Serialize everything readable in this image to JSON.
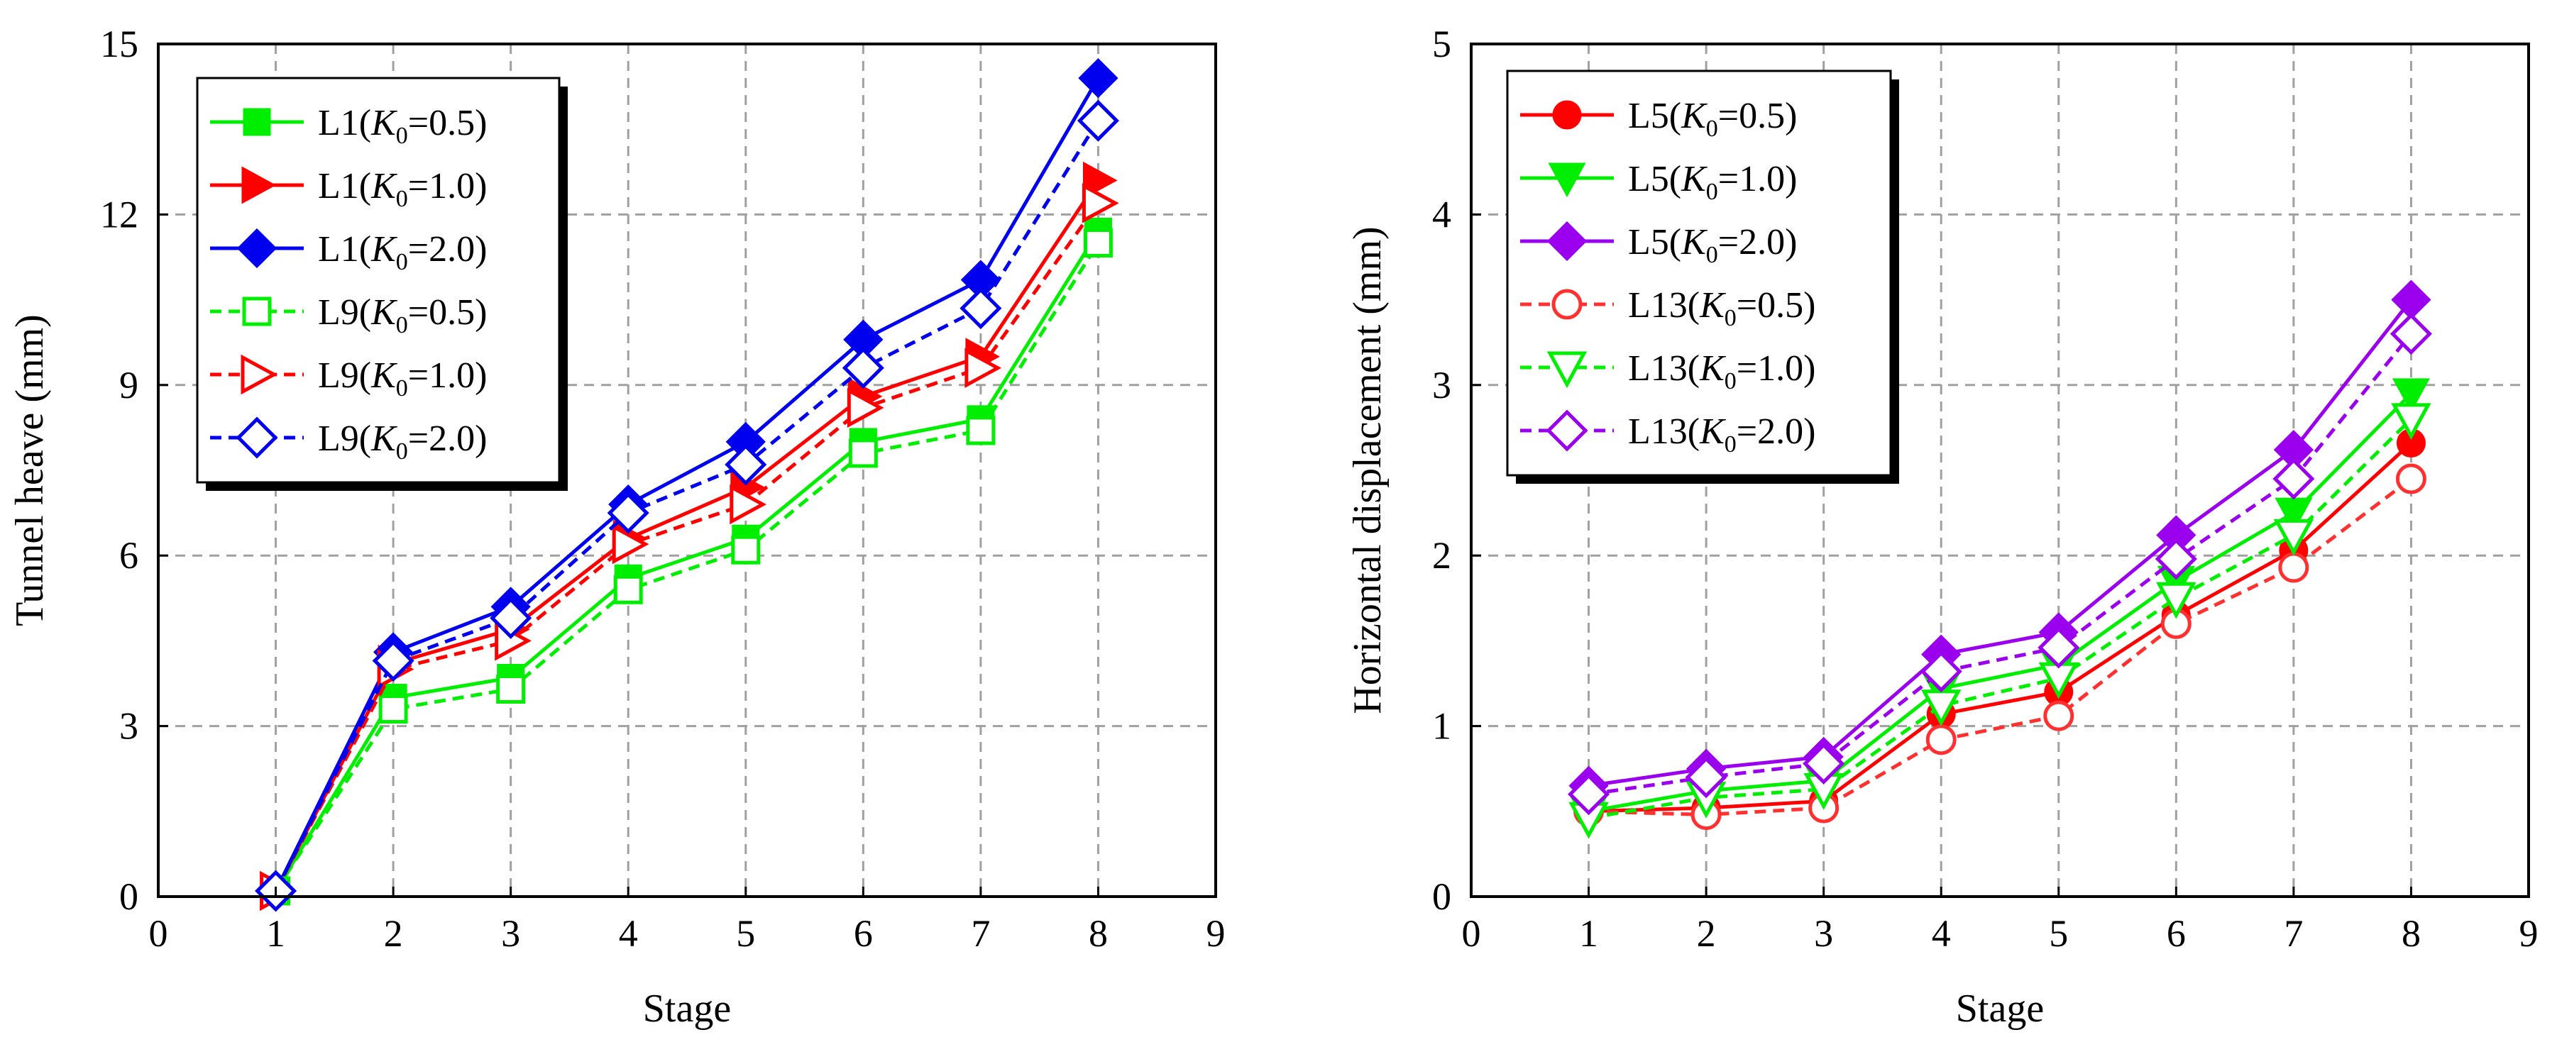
{
  "chart_data": [
    {
      "type": "line",
      "xlabel": "Stage",
      "ylabel": "Tunnel heave (mm)",
      "xlim": [
        0,
        9
      ],
      "ylim": [
        0,
        15
      ],
      "xticks": [
        0,
        1,
        2,
        3,
        4,
        5,
        6,
        7,
        8,
        9
      ],
      "yticks": [
        0,
        3,
        6,
        9,
        12,
        15
      ],
      "xtick_labels": [
        "0",
        "1",
        "2",
        "3",
        "4",
        "5",
        "6",
        "7",
        "8",
        "9"
      ],
      "ytick_labels": [
        "0",
        "3",
        "6",
        "9",
        "12",
        "15"
      ],
      "grid": true,
      "legend_position": "top-left",
      "x": [
        1,
        2,
        3,
        4,
        5,
        6,
        7,
        8
      ],
      "series": [
        {
          "name": "L1(K0=0.5)",
          "label_main": "L1(",
          "label_k": "K",
          "label_sub": "0",
          "label_rest": "=0.5)",
          "color": "#00ee00",
          "dash": "solid",
          "marker": "square",
          "filled": true,
          "values": [
            0.1,
            3.5,
            3.85,
            5.6,
            6.3,
            8.0,
            8.4,
            11.7
          ]
        },
        {
          "name": "L1(K0=1.0)",
          "label_main": "L1(",
          "label_k": "K",
          "label_sub": "0",
          "label_rest": "=1.0)",
          "color": "#ff0000",
          "dash": "solid",
          "marker": "triangle-right",
          "filled": true,
          "values": [
            0.1,
            4.1,
            4.7,
            6.3,
            7.2,
            8.8,
            9.5,
            12.6
          ]
        },
        {
          "name": "L1(K0=2.0)",
          "label_main": "L1(",
          "label_k": "K",
          "label_sub": "0",
          "label_rest": "=2.0)",
          "color": "#0000ee",
          "dash": "solid",
          "marker": "diamond",
          "filled": true,
          "values": [
            0.1,
            4.3,
            5.1,
            6.9,
            8.0,
            9.8,
            10.85,
            14.4
          ]
        },
        {
          "name": "L9(K0=0.5)",
          "label_main": "L9(",
          "label_k": "K",
          "label_sub": "0",
          "label_rest": "=0.5)",
          "color": "#00ee00",
          "dash": "dashed",
          "marker": "square",
          "filled": false,
          "values": [
            0.1,
            3.3,
            3.65,
            5.4,
            6.1,
            7.8,
            8.2,
            11.5
          ]
        },
        {
          "name": "L9(K0=1.0)",
          "label_main": "L9(",
          "label_k": "K",
          "label_sub": "0",
          "label_rest": "=1.0)",
          "color": "#ff0000",
          "dash": "dashed",
          "marker": "triangle-right",
          "filled": false,
          "values": [
            0.1,
            4.0,
            4.5,
            6.2,
            6.9,
            8.6,
            9.3,
            12.2
          ]
        },
        {
          "name": "L9(K0=2.0)",
          "label_main": "L9(",
          "label_k": "K",
          "label_sub": "0",
          "label_rest": "=2.0)",
          "color": "#0000ee",
          "dash": "dashed",
          "marker": "diamond",
          "filled": false,
          "values": [
            0.1,
            4.15,
            4.9,
            6.75,
            7.6,
            9.3,
            10.35,
            13.65
          ]
        }
      ]
    },
    {
      "type": "line",
      "xlabel": "Stage",
      "ylabel": "Horizontal displacement (mm)",
      "xlim": [
        0,
        9
      ],
      "ylim": [
        0,
        5
      ],
      "xticks": [
        0,
        1,
        2,
        3,
        4,
        5,
        6,
        7,
        8,
        9
      ],
      "yticks": [
        0,
        1,
        2,
        3,
        4,
        5
      ],
      "xtick_labels": [
        "0",
        "1",
        "2",
        "3",
        "4",
        "5",
        "6",
        "7",
        "8",
        "9"
      ],
      "ytick_labels": [
        "0",
        "1",
        "2",
        "3",
        "4",
        "5"
      ],
      "grid": true,
      "legend_position": "top-left",
      "x": [
        1,
        2,
        3,
        4,
        5,
        6,
        7,
        8
      ],
      "series": [
        {
          "name": "L5(K0=0.5)",
          "label_main": "L5(",
          "label_k": "K",
          "label_sub": "0",
          "label_rest": "=0.5)",
          "color": "#ff0000",
          "dash": "solid",
          "marker": "circle",
          "filled": true,
          "values": [
            0.5,
            0.52,
            0.56,
            1.07,
            1.2,
            1.65,
            2.03,
            2.66
          ]
        },
        {
          "name": "L5(K0=1.0)",
          "label_main": "L5(",
          "label_k": "K",
          "label_sub": "0",
          "label_rest": "=1.0)",
          "color": "#00ee00",
          "dash": "solid",
          "marker": "triangle-down",
          "filled": true,
          "values": [
            0.5,
            0.62,
            0.68,
            1.22,
            1.36,
            1.85,
            2.25,
            2.95
          ]
        },
        {
          "name": "L5(K0=2.0)",
          "label_main": "L5(",
          "label_k": "K",
          "label_sub": "0",
          "label_rest": "=2.0)",
          "color": "#9a00ee",
          "dash": "solid",
          "marker": "diamond",
          "filled": true,
          "values": [
            0.65,
            0.75,
            0.82,
            1.42,
            1.55,
            2.12,
            2.62,
            3.5
          ]
        },
        {
          "name": "L13(K0=0.5)",
          "label_main": "L13(",
          "label_k": "K",
          "label_sub": "0",
          "label_rest": "=0.5)",
          "color": "#ff3030",
          "dash": "dashed",
          "marker": "circle",
          "filled": false,
          "values": [
            0.5,
            0.48,
            0.52,
            0.92,
            1.06,
            1.6,
            1.93,
            2.45
          ]
        },
        {
          "name": "L13(K0=1.0)",
          "label_main": "L13(",
          "label_k": "K",
          "label_sub": "0",
          "label_rest": "=1.0)",
          "color": "#00ee00",
          "dash": "dashed",
          "marker": "triangle-down",
          "filled": false,
          "values": [
            0.46,
            0.58,
            0.63,
            1.12,
            1.28,
            1.75,
            2.12,
            2.8
          ]
        },
        {
          "name": "L13(K0=2.0)",
          "label_main": "L13(",
          "label_k": "K",
          "label_sub": "0",
          "label_rest": "=2.0)",
          "color": "#9a00ee",
          "dash": "dashed",
          "marker": "diamond",
          "filled": false,
          "values": [
            0.6,
            0.7,
            0.78,
            1.32,
            1.46,
            1.98,
            2.45,
            3.3
          ]
        }
      ]
    }
  ]
}
